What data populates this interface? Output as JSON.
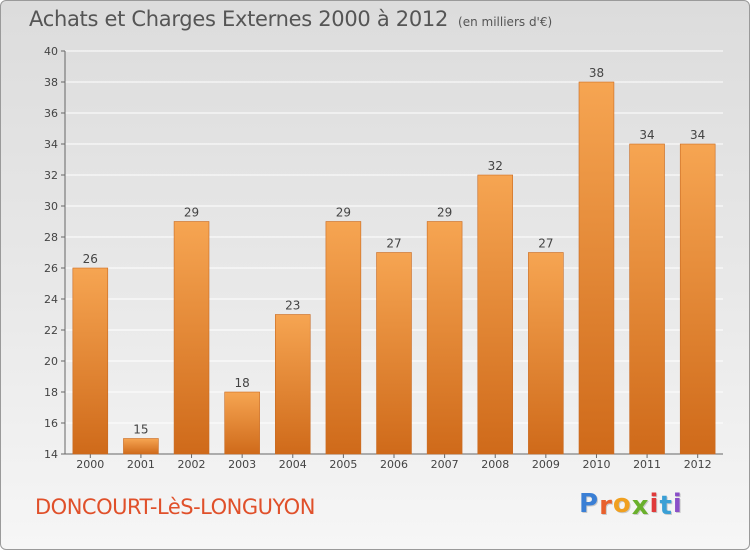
{
  "header": {
    "title": "Achats et Charges Externes 2000 à 2012",
    "unit": "(en milliers d'€)"
  },
  "footer": {
    "place": "DONCOURT-LèS-LONGUYON",
    "logo": {
      "letters": [
        "P",
        "r",
        "o",
        "x",
        "i",
        "t",
        "i"
      ],
      "colors": [
        "#3a7fd5",
        "#e8602c",
        "#f0a020",
        "#6ab02c",
        "#e03a3a",
        "#3a9fd5",
        "#8a4fc8"
      ]
    }
  },
  "colors": {
    "bar_top": "#f6a552",
    "bar_bottom": "#cf6a1a",
    "title": "#555555",
    "place": "#e0502a"
  },
  "chart_data": {
    "type": "bar",
    "title": "Achats et Charges Externes 2000 à 2012",
    "subtitle": "(en milliers d'€)",
    "xlabel": "",
    "ylabel": "",
    "categories": [
      "2000",
      "2001",
      "2002",
      "2003",
      "2004",
      "2005",
      "2006",
      "2007",
      "2008",
      "2009",
      "2010",
      "2011",
      "2012"
    ],
    "values": [
      26,
      15,
      29,
      18,
      23,
      29,
      27,
      29,
      32,
      27,
      38,
      34,
      34
    ],
    "ylim": [
      14,
      40
    ],
    "yticks": [
      14,
      16,
      18,
      20,
      22,
      24,
      26,
      28,
      30,
      32,
      34,
      36,
      38,
      40
    ],
    "grid": true,
    "legend": "none"
  }
}
